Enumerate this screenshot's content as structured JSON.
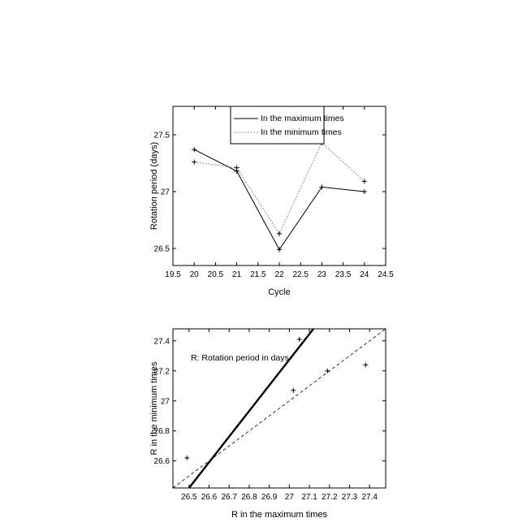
{
  "chart_data": [
    {
      "type": "line",
      "title": "",
      "xlabel": "Cycle",
      "ylabel": "Rotation period (days)",
      "xlim": [
        19.5,
        24.5
      ],
      "ylim": [
        26.35,
        27.75
      ],
      "xticks": [
        "19.5",
        "20",
        "20.5",
        "21",
        "21.5",
        "22",
        "22.5",
        "23",
        "23.5",
        "24",
        "24.5"
      ],
      "yticks": [
        "26.5",
        "27",
        "27.5"
      ],
      "grid": false,
      "legend_position": "top-center",
      "series": [
        {
          "name": "In the maximum times",
          "style": "solid",
          "marker": "+",
          "x": [
            20,
            21,
            22,
            23,
            24
          ],
          "y": [
            27.37,
            27.18,
            26.49,
            27.04,
            27.0
          ]
        },
        {
          "name": "In the minimum times",
          "style": "dotted",
          "marker": "+",
          "x": [
            20,
            21,
            22,
            23,
            24
          ],
          "y": [
            27.26,
            27.21,
            26.63,
            27.43,
            27.09
          ]
        }
      ]
    },
    {
      "type": "scatter",
      "title": "",
      "xlabel": "R in the maximum times",
      "ylabel": "R in the minimum times",
      "annotation": "R: Rotation period in days",
      "xlim": [
        26.42,
        27.48
      ],
      "ylim": [
        26.42,
        27.48
      ],
      "xticks": [
        "26.5",
        "26.6",
        "26.7",
        "26.8",
        "26.9",
        "27",
        "27.1",
        "27.2",
        "27.3",
        "27.4"
      ],
      "yticks": [
        "26.6",
        "26.8",
        "27",
        "27.2",
        "27.4"
      ],
      "grid": false,
      "points": {
        "marker": "+",
        "x": [
          26.49,
          27.02,
          27.05,
          27.19,
          27.38
        ],
        "y": [
          26.62,
          27.07,
          27.41,
          27.2,
          27.24
        ]
      },
      "lines": [
        {
          "style": "dashed",
          "from": [
            26.42,
            26.42
          ],
          "to": [
            27.48,
            27.48
          ]
        },
        {
          "style": "thick-solid",
          "from": [
            26.5,
            26.42
          ],
          "to": [
            27.12,
            27.48
          ]
        }
      ]
    }
  ]
}
